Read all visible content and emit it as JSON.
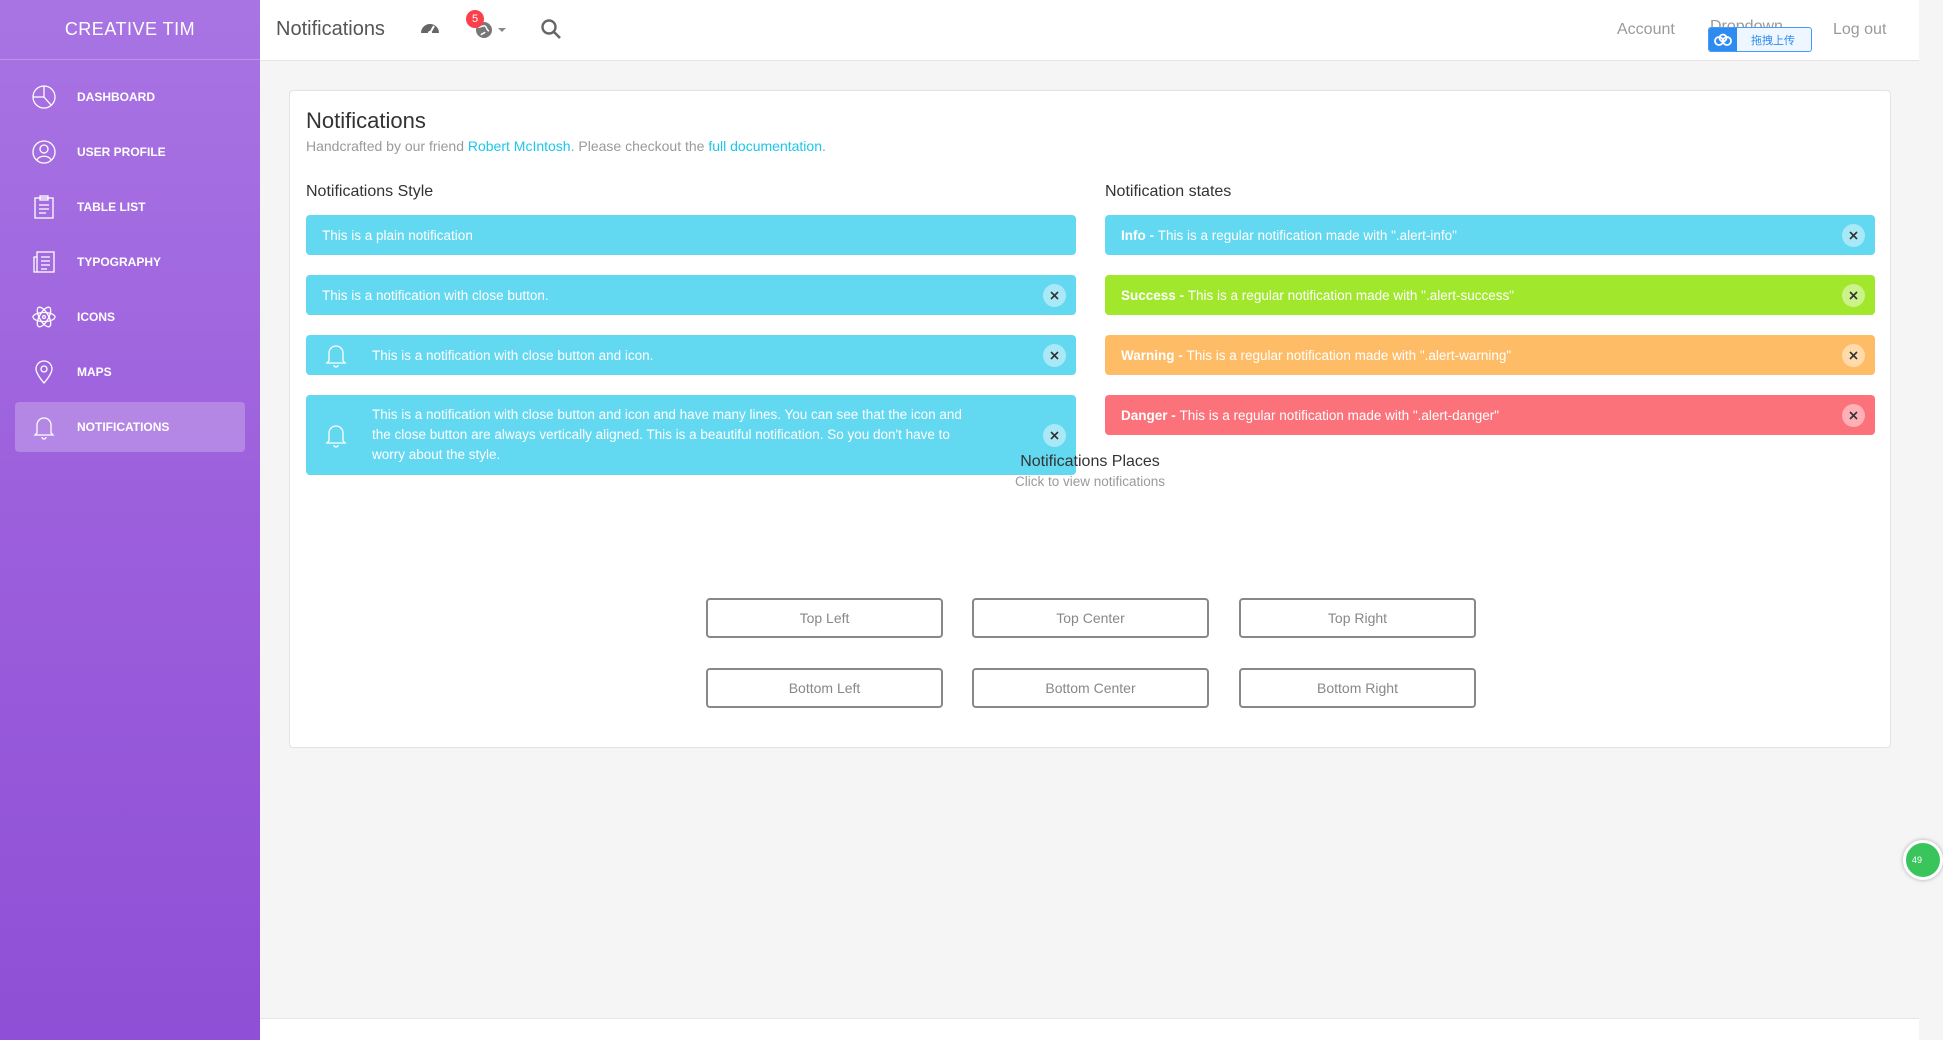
{
  "sidebar": {
    "brand": "CREATIVE TIM",
    "items": [
      {
        "label": "DASHBOARD",
        "icon": "pie-chart-icon"
      },
      {
        "label": "USER PROFILE",
        "icon": "user-icon"
      },
      {
        "label": "TABLE LIST",
        "icon": "clipboard-icon"
      },
      {
        "label": "TYPOGRAPHY",
        "icon": "news-icon"
      },
      {
        "label": "ICONS",
        "icon": "atom-icon"
      },
      {
        "label": "MAPS",
        "icon": "pin-icon"
      },
      {
        "label": "NOTIFICATIONS",
        "icon": "bell-icon",
        "active": true
      }
    ]
  },
  "topbar": {
    "title": "Notifications",
    "badge_count": "5",
    "account": "Account",
    "dropdown": "Dropdown",
    "upload_label": "拖拽上传",
    "logout": "Log out"
  },
  "card": {
    "title": "Notifications",
    "sub_prefix": "Handcrafted by our friend ",
    "sub_author": "Robert McIntosh",
    "sub_middle": ". Please checkout the ",
    "sub_link": "full documentation",
    "sub_suffix": "."
  },
  "styles": {
    "title": "Notifications Style",
    "plain": "This is a plain notification",
    "close": "This is a notification with close button.",
    "close_icon": "This is a notification with close button and icon.",
    "multi_line1": "This is a notification with close button and icon and have many lines. You can see that the icon and",
    "multi_line2": "the close button are always vertically aligned. This is a beautiful notification. So you don't have to",
    "multi_line3": "worry about the style."
  },
  "states": {
    "title": "Notification states",
    "info_label": "Info - ",
    "info_text": "This is a regular notification made with \".alert-info\"",
    "success_label": "Success - ",
    "success_text": "This is a regular notification made with \".alert-success\"",
    "warning_label": "Warning - ",
    "warning_text": "This is a regular notification made with \".alert-warning\"",
    "danger_label": "Danger - ",
    "danger_text": "This is a regular notification made with \".alert-danger\""
  },
  "places": {
    "title": "Notifications Places",
    "subtitle": "Click to view notifications",
    "buttons": [
      "Top Left",
      "Top Center",
      "Top Right",
      "Bottom Left",
      "Bottom Center",
      "Bottom Right"
    ]
  },
  "floating_bubble": "49",
  "colors": {
    "info": "#63d8f1",
    "success": "#a1e82c",
    "warning": "#ffbc67",
    "danger": "#fc727a"
  }
}
